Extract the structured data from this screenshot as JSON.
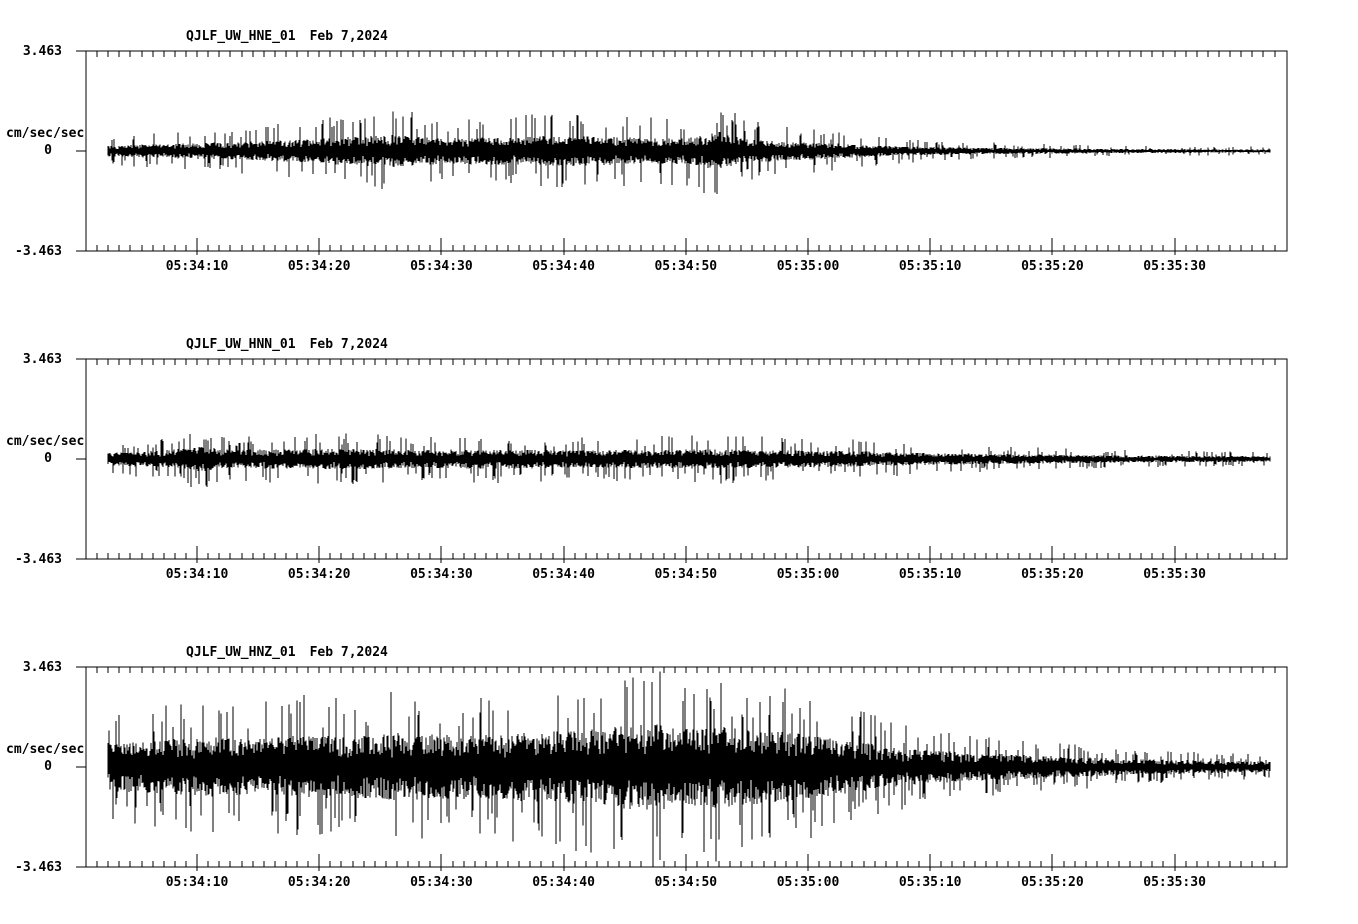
{
  "background_color": "#ffffff",
  "ink_color": "#000000",
  "chart_data": [
    {
      "type": "line",
      "subtype": "seismogram-waveform",
      "title": "QJLF_UW_HNE_01",
      "date_label": "Feb 7,2024",
      "ylabel": "cm/sec/sec",
      "ymax_label": "3.463",
      "yzero_label": "0",
      "ymin_label": "-3.463",
      "ylim": [
        -3.463,
        3.463
      ],
      "xtick_labels": [
        "05:34:10",
        "05:34:20",
        "05:34:30",
        "05:34:40",
        "05:34:50",
        "05:35:00",
        "05:35:10",
        "05:35:20",
        "05:35:30"
      ],
      "x_start_time": "05:34:03",
      "x_end_time": "05:35:38",
      "grid": false,
      "legend": false,
      "envelope_t_seconds": [
        0,
        5,
        10,
        15,
        20,
        23,
        27,
        32,
        37,
        41,
        45,
        48,
        50,
        52,
        55,
        58,
        61,
        64,
        68,
        72,
        76,
        80,
        85,
        90,
        95
      ],
      "envelope_amplitude": [
        0.5,
        0.65,
        0.8,
        1.0,
        1.3,
        1.5,
        1.2,
        1.25,
        1.4,
        1.3,
        1.15,
        1.25,
        1.8,
        1.1,
        0.9,
        0.75,
        0.6,
        0.45,
        0.35,
        0.3,
        0.26,
        0.22,
        0.18,
        0.16,
        0.15
      ],
      "texture": {
        "core": 0.26,
        "spike_prob": 0.12
      }
    },
    {
      "type": "line",
      "subtype": "seismogram-waveform",
      "title": "QJLF_UW_HNN_01",
      "date_label": "Feb 7,2024",
      "ylabel": "cm/sec/sec",
      "ymax_label": "3.463",
      "yzero_label": "0",
      "ymin_label": "-3.463",
      "ylim": [
        -3.463,
        3.463
      ],
      "xtick_labels": [
        "05:34:10",
        "05:34:20",
        "05:34:30",
        "05:34:40",
        "05:34:50",
        "05:35:00",
        "05:35:10",
        "05:35:20",
        "05:35:30"
      ],
      "x_start_time": "05:34:03",
      "x_end_time": "05:35:38",
      "grid": false,
      "legend": false,
      "envelope_t_seconds": [
        0,
        4,
        8,
        10,
        14,
        20,
        26,
        32,
        38,
        44,
        50,
        56,
        60,
        64,
        68,
        72,
        76,
        80,
        85,
        90,
        95
      ],
      "envelope_amplitude": [
        0.55,
        0.7,
        1.1,
        0.8,
        0.85,
        0.9,
        0.8,
        0.85,
        0.75,
        0.8,
        0.85,
        0.75,
        0.7,
        0.6,
        0.5,
        0.45,
        0.4,
        0.35,
        0.3,
        0.27,
        0.24
      ],
      "texture": {
        "core": 0.28,
        "spike_prob": 0.13
      }
    },
    {
      "type": "line",
      "subtype": "seismogram-waveform",
      "title": "QJLF_UW_HNZ_01",
      "date_label": "Feb 7,2024",
      "ylabel": "cm/sec/sec",
      "ymax_label": "3.463",
      "yzero_label": "0",
      "ymin_label": "-3.463",
      "ylim": [
        -3.463,
        3.463
      ],
      "xtick_labels": [
        "05:34:10",
        "05:34:20",
        "05:34:30",
        "05:34:40",
        "05:34:50",
        "05:35:00",
        "05:35:10",
        "05:35:20",
        "05:35:30"
      ],
      "x_start_time": "05:34:03",
      "x_end_time": "05:35:38",
      "grid": false,
      "legend": false,
      "envelope_t_seconds": [
        0,
        4,
        8,
        12,
        16,
        20,
        24,
        28,
        32,
        36,
        40,
        44,
        47,
        50,
        53,
        56,
        59,
        62,
        65,
        68,
        71,
        74,
        78,
        82,
        86,
        90,
        95
      ],
      "envelope_amplitude": [
        1.9,
        2.1,
        2.4,
        2.2,
        2.5,
        2.4,
        2.7,
        2.5,
        2.6,
        2.8,
        3.0,
        3.5,
        3.1,
        3.3,
        3.0,
        2.7,
        2.3,
        1.9,
        1.5,
        1.25,
        1.1,
        1.0,
        0.85,
        0.7,
        0.6,
        0.5,
        0.42
      ],
      "texture": {
        "core": 0.32,
        "spike_prob": 0.15
      }
    }
  ]
}
